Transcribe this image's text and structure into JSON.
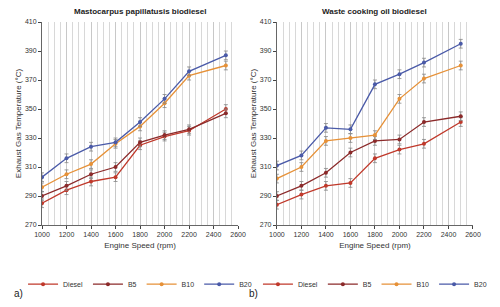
{
  "chart_data": [
    {
      "type": "line",
      "title": "Mastocarpus papillatusis biodiesel",
      "x_label": "Engine Speed (rpm)",
      "y_label": "Exhaust Gas Temperature (°C)",
      "annotations": [
        "a)"
      ],
      "x": [
        1000,
        1200,
        1400,
        1600,
        1800,
        2000,
        2200,
        2500
      ],
      "series": [
        {
          "name": "Diesel",
          "color": "#c0392b",
          "marker": "circle",
          "values": [
            285,
            294,
            300,
            303,
            325,
            331,
            335,
            350
          ],
          "error": [
            3,
            3,
            3,
            3,
            3,
            3,
            3,
            3
          ]
        },
        {
          "name": "B5",
          "color": "#8b2a2a",
          "marker": "circle",
          "values": [
            290,
            297,
            305,
            310,
            327,
            332,
            336,
            347
          ],
          "error": [
            3,
            3,
            3,
            3,
            3,
            3,
            3,
            3
          ]
        },
        {
          "name": "B10",
          "color": "#e69138",
          "marker": "circle",
          "values": [
            296,
            305,
            312,
            326,
            338,
            354,
            373,
            380
          ],
          "error": [
            3,
            3,
            3,
            3,
            3,
            3,
            3,
            3
          ]
        },
        {
          "name": "B20",
          "color": "#4a5aa8",
          "marker": "circle",
          "values": [
            303,
            316,
            324,
            327,
            341,
            357,
            376,
            387
          ],
          "error": [
            3,
            3,
            3,
            3,
            3,
            3,
            3,
            3
          ]
        }
      ],
      "xlim": [
        1000,
        2600
      ],
      "xticks": [
        1000,
        1200,
        1400,
        1600,
        1800,
        2000,
        2200,
        2400,
        2600
      ],
      "ylim": [
        270,
        410
      ],
      "yticks": [
        270,
        290,
        310,
        330,
        350,
        370,
        390,
        410
      ],
      "grid": true,
      "legend": "bottom"
    },
    {
      "type": "line",
      "title": "Waste cooking oil biodiesel",
      "x_label": "Engine Speed (rpm)",
      "y_label": "Exhaust Gas Temperature (°C)",
      "annotations": [
        "b)"
      ],
      "x": [
        1000,
        1200,
        1400,
        1600,
        1800,
        2000,
        2200,
        2500
      ],
      "series": [
        {
          "name": "Diesel",
          "color": "#c0392b",
          "marker": "circle",
          "values": [
            284,
            291,
            297,
            299,
            316,
            322,
            326,
            341
          ],
          "error": [
            3,
            3,
            3,
            3,
            3,
            3,
            3,
            3
          ]
        },
        {
          "name": "B5",
          "color": "#8b2a2a",
          "marker": "circle",
          "values": [
            290,
            297,
            306,
            320,
            328,
            329,
            341,
            345
          ],
          "error": [
            3,
            3,
            3,
            3,
            3,
            3,
            3,
            3
          ]
        },
        {
          "name": "B10",
          "color": "#e69138",
          "marker": "circle",
          "values": [
            302,
            310,
            328,
            330,
            332,
            357,
            371,
            380
          ],
          "error": [
            3,
            3,
            3,
            3,
            3,
            3,
            3,
            3
          ]
        },
        {
          "name": "B20",
          "color": "#4a5aa8",
          "marker": "circle",
          "values": [
            311,
            318,
            337,
            336,
            367,
            374,
            382,
            395
          ],
          "error": [
            3,
            3,
            3,
            3,
            3,
            3,
            3,
            3
          ]
        }
      ],
      "xlim": [
        1000,
        2600
      ],
      "xticks": [
        1000,
        1200,
        1400,
        1600,
        1800,
        2000,
        2200,
        2400,
        2600
      ],
      "ylim": [
        270,
        410
      ],
      "yticks": [
        270,
        290,
        310,
        330,
        350,
        370,
        390,
        410
      ],
      "grid": true,
      "legend": "bottom"
    }
  ]
}
